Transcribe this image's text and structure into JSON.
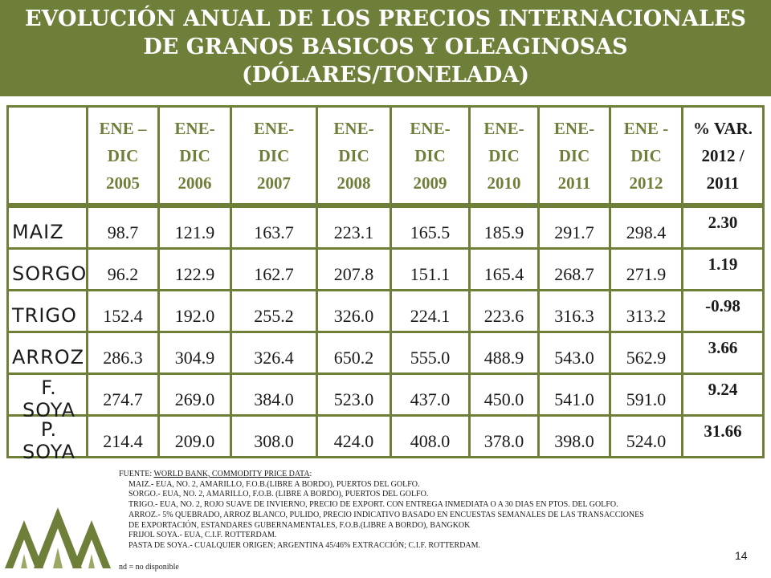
{
  "title": {
    "line1": "EVOLUCIÓN ANUAL DE LOS PRECIOS INTERNACIONALES",
    "line2": "DE GRANOS BASICOS Y OLEAGINOSAS",
    "line3": "(DÓLARES/TONELADA)"
  },
  "table": {
    "headers": [
      [
        "ENE –",
        "DIC",
        "2005"
      ],
      [
        "ENE-",
        "DIC",
        "2006"
      ],
      [
        "ENE-",
        "DIC",
        "2007"
      ],
      [
        "ENE-",
        "DIC",
        "2008"
      ],
      [
        "ENE-",
        "DIC",
        "2009"
      ],
      [
        "ENE-",
        "DIC",
        "2010"
      ],
      [
        "ENE-",
        "DIC",
        "2011"
      ],
      [
        "ENE -",
        "DIC",
        "2012"
      ],
      [
        "% VAR.",
        "2012 /",
        "2011"
      ]
    ],
    "rows": [
      {
        "label": "MAIZ",
        "values": [
          "98.7",
          "121.9",
          "163.7",
          "223.1",
          "165.5",
          "185.9",
          "291.7",
          "298.4"
        ],
        "var": "2.30"
      },
      {
        "label": "SORGO",
        "values": [
          "96.2",
          "122.9",
          "162.7",
          "207.8",
          "151.1",
          "165.4",
          "268.7",
          "271.9"
        ],
        "var": "1.19"
      },
      {
        "label": "TRIGO",
        "values": [
          "152.4",
          "192.0",
          "255.2",
          "326.0",
          "224.1",
          "223.6",
          "316.3",
          "313.2"
        ],
        "var": "-0.98"
      },
      {
        "label": "ARROZ",
        "values": [
          "286.3",
          "304.9",
          "326.4",
          "650.2",
          "555.0",
          "488.9",
          "543.0",
          "562.9"
        ],
        "var": "3.66"
      },
      {
        "label": "F. SOYA",
        "values": [
          "274.7",
          "269.0",
          "384.0",
          "523.0",
          "437.0",
          "450.0",
          "541.0",
          "591.0"
        ],
        "var": "9.24"
      },
      {
        "label": "P. SOYA",
        "values": [
          "214.4",
          "209.0",
          "308.0",
          "424.0",
          "408.0",
          "378.0",
          "398.0",
          "524.0"
        ],
        "var": "31.66"
      }
    ]
  },
  "notes": {
    "source_prefix": "FUENTE: ",
    "source_link": "WORLD BANK, COMMODITY PRICE DATA",
    "source_suffix": ":",
    "lines": [
      "MAIZ.-    EUA, NO. 2, AMARILLO, F.O.B.(LIBRE A BORDO), PUERTOS DEL GOLFO.",
      "SORGO.- EUA, NO. 2, AMARILLO, F.O.B. (LIBRE A BORDO), PUERTOS DEL GOLFO.",
      "TRIGO.-  EUA, NO. 2, ROJO SUAVE DE INVIERNO,  PRECIO DE EXPORT. CON ENTREGA INMEDIATA  O A 30 DIAS EN PTOS. DEL GOLFO.",
      "ARROZ.- 5% QUEBRADO, ARROZ BLANCO,  PULIDO, PRECIO INDICATIVO BASADO  EN  ENCUESTAS SEMANALES DE LAS TRANSACCIONES",
      "DE EXPORTACIÓN, ESTANDARES GUBERNAMENTALES,  F.O.B.(LIBRE A BORDO),   BANGKOK",
      "FRIJOL SOYA.-  EUA, C.I.F. ROTTERDAM.",
      "PASTA DE SOYA.- CUALQUIER ORIGEN; ARGENTINA 45/46% EXTRACCIÓN; C.I.F. ROTTERDAM."
    ],
    "nd": "nd  = no disponible"
  },
  "page_number": "14",
  "colors": {
    "accent": "#6e7f3a",
    "white": "#ffffff",
    "text": "#1a1a1a"
  },
  "logo_icon": "three-mountain-logo-icon"
}
